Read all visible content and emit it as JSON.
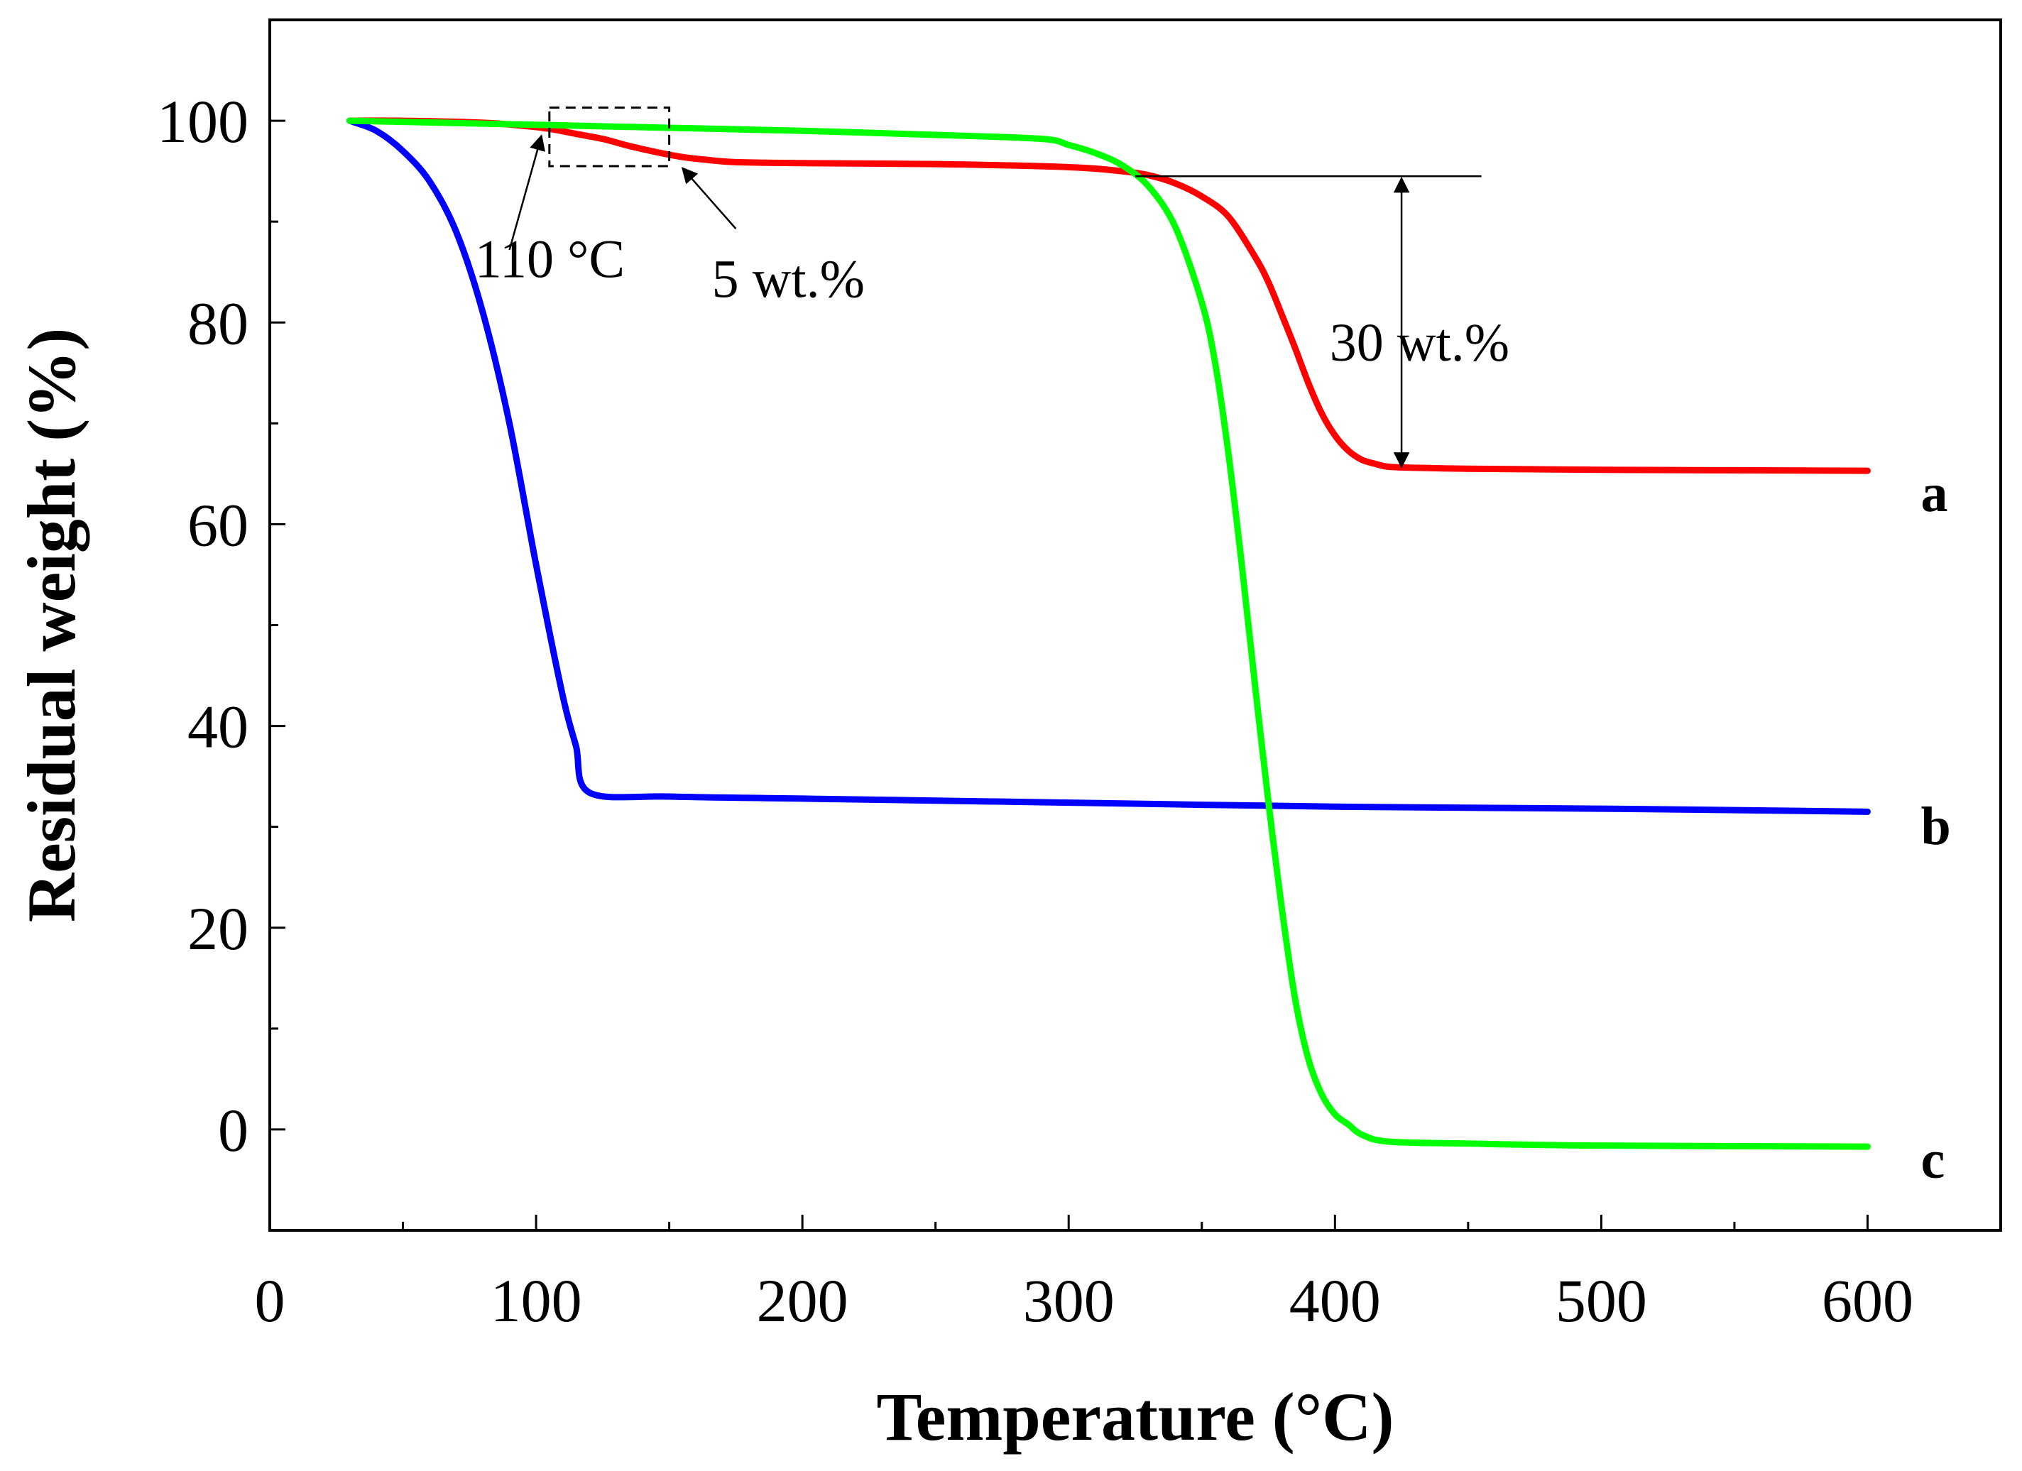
{
  "chart_data": {
    "type": "line",
    "title": "",
    "xlabel": "Temperature (°C)",
    "ylabel": "Residual weight (%)",
    "xlim": [
      0,
      650
    ],
    "ylim": [
      -10,
      110
    ],
    "xticks": [
      0,
      100,
      200,
      300,
      400,
      500,
      600
    ],
    "xtick_labels": [
      "0",
      "100",
      "200",
      "300",
      "400",
      "500",
      "600"
    ],
    "yticks": [
      0,
      20,
      40,
      60,
      80,
      100
    ],
    "ytick_labels": [
      "0",
      "20",
      "40",
      "60",
      "80",
      "100"
    ],
    "grid": false,
    "series": [
      {
        "name": "a",
        "color": "#ff0000",
        "x": [
          30,
          50,
          80,
          95,
          105,
          115,
          125,
          135,
          145,
          155,
          165,
          175,
          200,
          250,
          300,
          320,
          330,
          340,
          350,
          360,
          370,
          375,
          380,
          385,
          390,
          395,
          400,
          405,
          410,
          415,
          420,
          430,
          450,
          500,
          600
        ],
        "y": [
          100,
          100,
          99.8,
          99.5,
          99.2,
          98.7,
          98.2,
          97.5,
          96.9,
          96.4,
          96.1,
          95.9,
          95.8,
          95.7,
          95.4,
          95.0,
          94.6,
          93.8,
          92.5,
          90.5,
          86.5,
          84.0,
          80.8,
          77.5,
          74.0,
          71.0,
          68.8,
          67.3,
          66.4,
          66.0,
          65.7,
          65.6,
          65.5,
          65.4,
          65.3
        ]
      },
      {
        "name": "b",
        "color": "#0000ff",
        "x": [
          30,
          40,
          50,
          60,
          70,
          80,
          90,
          100,
          110,
          115,
          120,
          150,
          200,
          300,
          400,
          500,
          600
        ],
        "y": [
          100,
          99.0,
          97.0,
          94.0,
          89.0,
          81.0,
          70.0,
          56.0,
          43.0,
          38.0,
          33.4,
          33.0,
          32.8,
          32.4,
          32.0,
          31.8,
          31.5
        ],
        "labeled_points": [
          {
            "temperature": 120,
            "residual": 33.4
          }
        ]
      },
      {
        "name": "c",
        "color": "#00ff00",
        "x": [
          30,
          100,
          150,
          200,
          250,
          290,
          300,
          310,
          320,
          330,
          340,
          350,
          355,
          360,
          365,
          370,
          375,
          380,
          385,
          390,
          395,
          400,
          405,
          410,
          420,
          450,
          500,
          600
        ],
        "y": [
          100,
          99.6,
          99.3,
          99.0,
          98.6,
          98.2,
          97.6,
          96.8,
          95.6,
          93.5,
          89.5,
          82.0,
          76.0,
          67.0,
          56.0,
          44.0,
          32.5,
          22.0,
          13.0,
          7.0,
          3.5,
          1.5,
          0.5,
          -0.5,
          -1.2,
          -1.4,
          -1.6,
          -1.7
        ]
      }
    ],
    "annotations": {
      "label_110": "110 °C",
      "label_5": "5 wt.%",
      "label_30": "30 wt.%",
      "label_a": "a",
      "label_b": "b",
      "label_c": "c"
    }
  }
}
